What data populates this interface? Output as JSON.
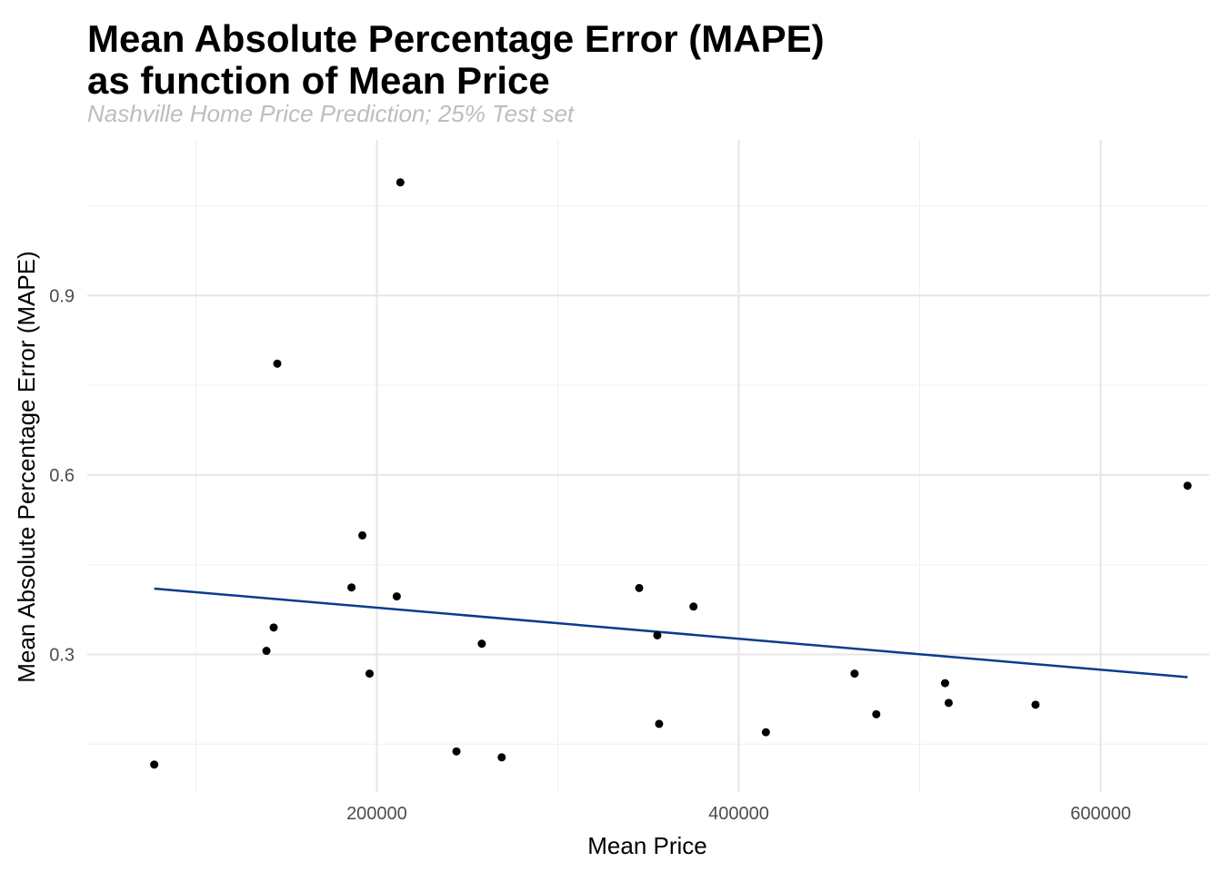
{
  "chart_data": {
    "type": "scatter",
    "title_line1": "Mean Absolute Percentage Error (MAPE)",
    "title_line2": "as function of Mean Price",
    "subtitle": "Nashville Home Price Prediction; 25% Test set",
    "xlabel": "Mean Price",
    "ylabel": "Mean Absolute Percentage Error (MAPE)",
    "xlim": [
      40000,
      660000
    ],
    "ylim": [
      0.07,
      1.16
    ],
    "x_ticks": [
      200000,
      400000,
      600000
    ],
    "x_tick_labels": [
      "200000",
      "400000",
      "600000"
    ],
    "y_ticks": [
      0.3,
      0.6,
      0.9
    ],
    "y_tick_labels": [
      "0.3",
      "0.6",
      "0.9"
    ],
    "grid": true,
    "point_color": "#000000",
    "trend_color": "#0b3b8c",
    "points": [
      {
        "x": 77000,
        "y": 0.116
      },
      {
        "x": 139000,
        "y": 0.306
      },
      {
        "x": 143000,
        "y": 0.345
      },
      {
        "x": 145000,
        "y": 0.786
      },
      {
        "x": 186000,
        "y": 0.412
      },
      {
        "x": 192000,
        "y": 0.499
      },
      {
        "x": 196000,
        "y": 0.268
      },
      {
        "x": 211000,
        "y": 0.397
      },
      {
        "x": 213000,
        "y": 1.089
      },
      {
        "x": 244000,
        "y": 0.138
      },
      {
        "x": 258000,
        "y": 0.318
      },
      {
        "x": 269000,
        "y": 0.128
      },
      {
        "x": 345000,
        "y": 0.411
      },
      {
        "x": 355000,
        "y": 0.332
      },
      {
        "x": 356000,
        "y": 0.184
      },
      {
        "x": 375000,
        "y": 0.38
      },
      {
        "x": 415000,
        "y": 0.17
      },
      {
        "x": 464000,
        "y": 0.268
      },
      {
        "x": 476000,
        "y": 0.2
      },
      {
        "x": 514000,
        "y": 0.252
      },
      {
        "x": 516000,
        "y": 0.219
      },
      {
        "x": 564000,
        "y": 0.216
      },
      {
        "x": 648000,
        "y": 0.582
      }
    ],
    "trend_line": {
      "x": [
        77000,
        648000
      ],
      "y": [
        0.41,
        0.262
      ]
    }
  }
}
